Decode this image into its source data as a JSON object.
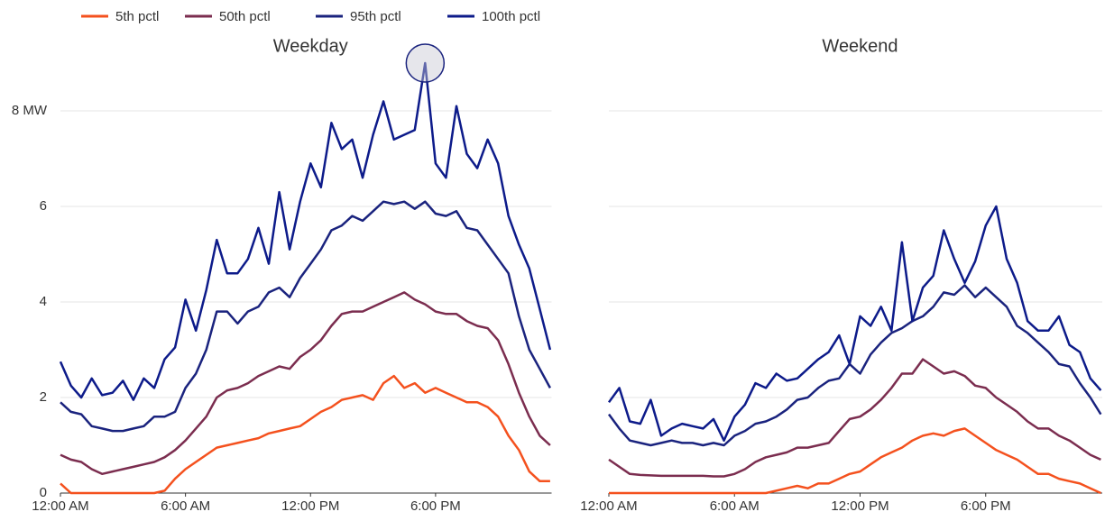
{
  "chart_data": [
    {
      "type": "line",
      "title": "Weekday",
      "x": [
        0,
        0.5,
        1,
        1.5,
        2,
        2.5,
        3,
        3.5,
        4,
        4.5,
        5,
        5.5,
        6,
        6.5,
        7,
        7.5,
        8,
        8.5,
        9,
        9.5,
        10,
        10.5,
        11,
        11.5,
        12,
        12.5,
        13,
        13.5,
        14,
        14.5,
        15,
        15.5,
        16,
        16.5,
        17,
        17.5,
        18,
        18.5,
        19,
        19.5,
        20,
        20.5,
        21,
        21.5,
        22,
        22.5,
        23,
        23.5
      ],
      "xlim": [
        0,
        24
      ],
      "xticks": [
        {
          "value": 0,
          "label": "12:00 AM"
        },
        {
          "value": 6,
          "label": "6:00 AM"
        },
        {
          "value": 12,
          "label": "12:00 PM"
        },
        {
          "value": 18,
          "label": "6:00 PM"
        }
      ],
      "ylim": [
        0,
        9
      ],
      "yticks": [
        0,
        2,
        4,
        6,
        {
          "value": 8,
          "label": "8 MW"
        }
      ],
      "grid": true,
      "series": [
        {
          "name": "5th pctl",
          "color": "#f4511e",
          "values": [
            0.2,
            0,
            0,
            0,
            0,
            0,
            0,
            0,
            0,
            0,
            0.05,
            0.3,
            0.5,
            0.65,
            0.8,
            0.95,
            1.0,
            1.05,
            1.1,
            1.15,
            1.25,
            1.3,
            1.35,
            1.4,
            1.55,
            1.7,
            1.8,
            1.95,
            2.0,
            2.05,
            1.95,
            2.3,
            2.45,
            2.2,
            2.3,
            2.1,
            2.2,
            2.1,
            2.0,
            1.9,
            1.9,
            1.8,
            1.6,
            1.2,
            0.9,
            0.45,
            0.25,
            0.25
          ]
        },
        {
          "name": "50th pctl",
          "color": "#7b2d4f",
          "values": [
            0.8,
            0.7,
            0.65,
            0.5,
            0.4,
            0.45,
            0.5,
            0.55,
            0.6,
            0.65,
            0.75,
            0.9,
            1.1,
            1.35,
            1.6,
            2.0,
            2.15,
            2.2,
            2.3,
            2.45,
            2.55,
            2.65,
            2.6,
            2.85,
            3.0,
            3.2,
            3.5,
            3.75,
            3.8,
            3.8,
            3.9,
            4.0,
            4.1,
            4.2,
            4.05,
            3.95,
            3.8,
            3.75,
            3.75,
            3.6,
            3.5,
            3.45,
            3.2,
            2.7,
            2.1,
            1.6,
            1.2,
            1.0
          ]
        },
        {
          "name": "95th pctl",
          "color": "#1a237e",
          "values": [
            1.9,
            1.7,
            1.65,
            1.4,
            1.35,
            1.3,
            1.3,
            1.35,
            1.4,
            1.6,
            1.6,
            1.7,
            2.2,
            2.5,
            3.0,
            3.8,
            3.8,
            3.55,
            3.8,
            3.9,
            4.2,
            4.3,
            4.1,
            4.5,
            4.8,
            5.1,
            5.5,
            5.6,
            5.8,
            5.7,
            5.9,
            6.1,
            6.05,
            6.1,
            5.95,
            6.1,
            5.85,
            5.8,
            5.9,
            5.55,
            5.5,
            5.2,
            4.9,
            4.6,
            3.7,
            3.0,
            2.6,
            2.2
          ]
        },
        {
          "name": "100th pctl",
          "color": "#0d1b8a",
          "values": [
            2.75,
            2.25,
            2.0,
            2.4,
            2.05,
            2.1,
            2.35,
            1.95,
            2.4,
            2.2,
            2.8,
            3.05,
            4.05,
            3.4,
            4.25,
            5.3,
            4.6,
            4.6,
            4.9,
            5.55,
            4.8,
            6.3,
            5.1,
            6.1,
            6.9,
            6.4,
            7.75,
            7.2,
            7.4,
            6.6,
            7.5,
            8.2,
            7.4,
            7.5,
            7.6,
            9.0,
            6.9,
            6.6,
            8.1,
            7.1,
            6.8,
            7.4,
            6.9,
            5.8,
            5.2,
            4.7,
            3.85,
            3.0
          ]
        }
      ]
    },
    {
      "type": "line",
      "title": "Weekend",
      "x": [
        0,
        0.5,
        1,
        1.5,
        2,
        2.5,
        3,
        3.5,
        4,
        4.5,
        5,
        5.5,
        6,
        6.5,
        7,
        7.5,
        8,
        8.5,
        9,
        9.5,
        10,
        10.5,
        11,
        11.5,
        12,
        12.5,
        13,
        13.5,
        14,
        14.5,
        15,
        15.5,
        16,
        16.5,
        17,
        17.5,
        18,
        18.5,
        19,
        19.5,
        20,
        20.5,
        21,
        21.5,
        22,
        22.5,
        23,
        23.5
      ],
      "xlim": [
        0,
        24
      ],
      "xticks": [
        {
          "value": 0,
          "label": "12:00 AM"
        },
        {
          "value": 6,
          "label": "6:00 AM"
        },
        {
          "value": 12,
          "label": "12:00 PM"
        },
        {
          "value": 18,
          "label": "6:00 PM"
        }
      ],
      "ylim": [
        0,
        9
      ],
      "series": [
        {
          "color": "#f4511e",
          "values": [
            0,
            0,
            0,
            0,
            0,
            0,
            0,
            0,
            0,
            0,
            0,
            0,
            0,
            0,
            0,
            0,
            0.05,
            0.1,
            0.15,
            0.1,
            0.2,
            0.2,
            0.3,
            0.4,
            0.45,
            0.6,
            0.75,
            0.85,
            0.95,
            1.1,
            1.2,
            1.25,
            1.2,
            1.3,
            1.35,
            1.2,
            1.05,
            0.9,
            0.8,
            0.7,
            0.55,
            0.4,
            0.4,
            0.3,
            0.25,
            0.2,
            0.1,
            0
          ]
        },
        {
          "color": "#7b2d4f",
          "values": [
            0.7,
            0.55,
            0.4,
            0.38,
            0.37,
            0.36,
            0.36,
            0.36,
            0.36,
            0.36,
            0.35,
            0.35,
            0.4,
            0.5,
            0.65,
            0.75,
            0.8,
            0.85,
            0.95,
            0.95,
            1.0,
            1.05,
            1.3,
            1.55,
            1.6,
            1.75,
            1.95,
            2.2,
            2.5,
            2.5,
            2.8,
            2.65,
            2.5,
            2.55,
            2.45,
            2.25,
            2.2,
            2.0,
            1.85,
            1.7,
            1.5,
            1.35,
            1.35,
            1.2,
            1.1,
            0.95,
            0.8,
            0.7
          ]
        },
        {
          "color": "#1a237e",
          "values": [
            1.65,
            1.35,
            1.1,
            1.05,
            1.0,
            1.05,
            1.1,
            1.05,
            1.05,
            1.0,
            1.05,
            1.0,
            1.2,
            1.3,
            1.45,
            1.5,
            1.6,
            1.75,
            1.95,
            2.0,
            2.2,
            2.35,
            2.4,
            2.7,
            2.5,
            2.9,
            3.15,
            3.35,
            3.45,
            3.6,
            3.7,
            3.9,
            4.2,
            4.15,
            4.35,
            4.1,
            4.3,
            4.1,
            3.9,
            3.5,
            3.35,
            3.15,
            2.95,
            2.7,
            2.65,
            2.3,
            2.0,
            1.65
          ]
        },
        {
          "color": "#0d1b8a",
          "values": [
            1.9,
            2.2,
            1.5,
            1.45,
            1.95,
            1.2,
            1.35,
            1.45,
            1.4,
            1.35,
            1.55,
            1.1,
            1.6,
            1.85,
            2.3,
            2.2,
            2.5,
            2.35,
            2.4,
            2.6,
            2.8,
            2.95,
            3.3,
            2.7,
            3.7,
            3.5,
            3.9,
            3.4,
            5.25,
            3.6,
            4.3,
            4.55,
            5.5,
            4.9,
            4.4,
            4.85,
            5.6,
            6.0,
            4.9,
            4.4,
            3.6,
            3.4,
            3.4,
            3.7,
            3.1,
            2.95,
            2.4,
            2.15
          ]
        }
      ]
    }
  ]
}
